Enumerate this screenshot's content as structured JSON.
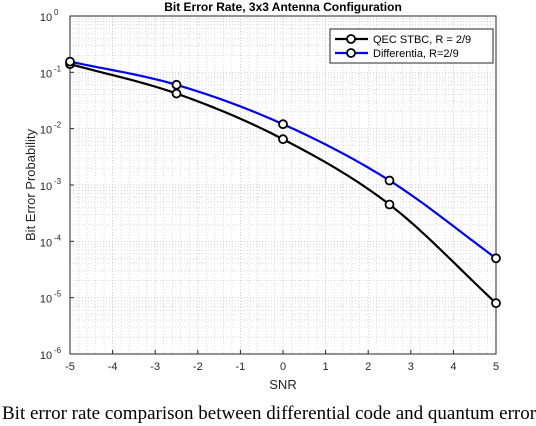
{
  "chart_data": {
    "type": "line",
    "title": "Bit Error Rate, 3x3 Antenna Configuration",
    "xlabel": "SNR",
    "ylabel": "Bit Error Probability",
    "xlim": [
      -5,
      5
    ],
    "ylim": [
      1e-06,
      1
    ],
    "yscale": "log",
    "grid": true,
    "minor_grid": true,
    "legend_position": "top-right",
    "x_ticks": [
      -5,
      -4,
      -3,
      -2,
      -1,
      0,
      1,
      2,
      3,
      4,
      5
    ],
    "y_tick_exponents": [
      0,
      -1,
      -2,
      -3,
      -4,
      -5,
      -6
    ],
    "series": [
      {
        "name": "QEC STBC, R = 2/9",
        "color": "#000000",
        "x": [
          -5,
          -2.5,
          0,
          2.5,
          5
        ],
        "y": [
          0.14,
          0.042,
          0.0065,
          0.00045,
          8e-06
        ]
      },
      {
        "name": "Differentia, R=2/9",
        "color": "#0000ff",
        "x": [
          -5,
          -2.5,
          0,
          2.5,
          5
        ],
        "y": [
          0.155,
          0.06,
          0.012,
          0.0012,
          5e-05
        ]
      }
    ]
  },
  "caption": "Bit error rate comparison between differential code and quantum error correcting STBC"
}
